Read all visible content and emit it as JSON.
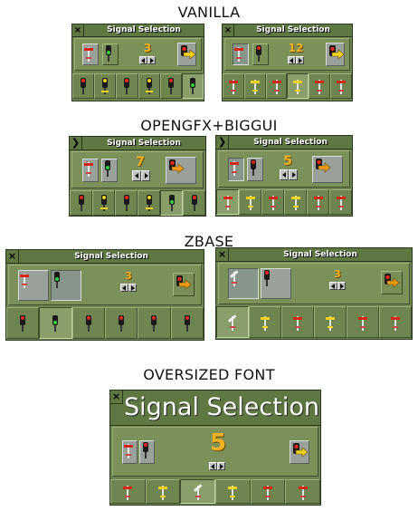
{
  "labels": {
    "vanilla": "VANILLA",
    "opengfx": "OPENGFX+BIGGUI",
    "zbase": "ZBASE",
    "oversized": "OVERSIZED FONT"
  },
  "window": {
    "title": "Signal Selection",
    "close_glyph": "×"
  },
  "vanilla": {
    "left_count": "3",
    "right_count": "12"
  },
  "opengfx": {
    "left_count": "7",
    "right_count": "5"
  },
  "zbase": {
    "left_count": "3",
    "right_count": "3"
  },
  "oversized": {
    "count": "5"
  },
  "icons": {
    "close": "close-icon",
    "semaphore": "semaphore-signal-icon",
    "light": "light-signal-icon",
    "convert": "convert-signal-icon",
    "arrows": "increase-decrease-arrows-icon"
  },
  "colors": {
    "window": "#6f8550",
    "title_bar": "#5f7741",
    "number": "#f0b224"
  }
}
